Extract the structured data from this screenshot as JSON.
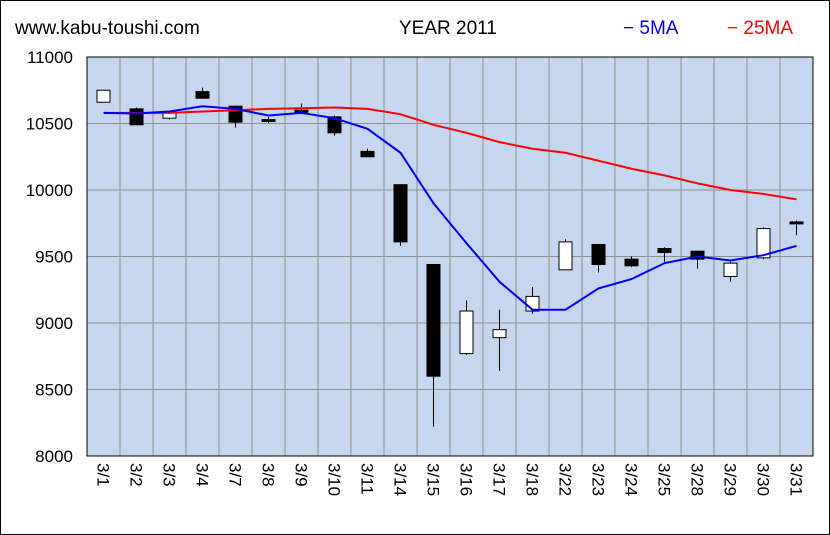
{
  "header": {
    "site": "www.kabu-toushi.com",
    "title": "YEAR 2011",
    "legend_5ma": "− 5MA",
    "legend_25ma": "− 25MA"
  },
  "colors": {
    "plot_bg": "#c6d6ee",
    "grid": "#8f8f8f",
    "ma5": "#0000ff",
    "ma25": "#ff0000",
    "candle_up": "#ffffff",
    "candle_down": "#000000"
  },
  "chart_data": {
    "type": "candlestick",
    "title": "YEAR 2011",
    "categories": [
      "3/1",
      "3/2",
      "3/3",
      "3/4",
      "3/7",
      "3/8",
      "3/9",
      "3/10",
      "3/11",
      "3/14",
      "3/15",
      "3/16",
      "3/17",
      "3/18",
      "3/22",
      "3/23",
      "3/24",
      "3/25",
      "3/28",
      "3/29",
      "3/30",
      "3/31"
    ],
    "ylim": [
      8000,
      11000
    ],
    "yticks": [
      "11000",
      "10500",
      "10000",
      "9500",
      "9000",
      "8500",
      "8000"
    ],
    "candles": [
      {
        "open": 10660,
        "close": 10750,
        "high": 10750,
        "low": 10660
      },
      {
        "open": 10610,
        "close": 10490,
        "high": 10620,
        "low": 10490
      },
      {
        "open": 10540,
        "close": 10590,
        "high": 10590,
        "low": 10530
      },
      {
        "open": 10740,
        "close": 10690,
        "high": 10770,
        "low": 10690
      },
      {
        "open": 10630,
        "close": 10510,
        "high": 10630,
        "low": 10470
      },
      {
        "open": 10530,
        "close": 10515,
        "high": 10550,
        "low": 10505
      },
      {
        "open": 10600,
        "close": 10585,
        "high": 10650,
        "low": 10570
      },
      {
        "open": 10550,
        "close": 10430,
        "high": 10560,
        "low": 10410
      },
      {
        "open": 10290,
        "close": 10250,
        "high": 10310,
        "low": 10250
      },
      {
        "open": 10040,
        "close": 9610,
        "high": 10040,
        "low": 9580
      },
      {
        "open": 9440,
        "close": 8600,
        "high": 9440,
        "low": 8220
      },
      {
        "open": 8770,
        "close": 9090,
        "high": 9170,
        "low": 8760
      },
      {
        "open": 8890,
        "close": 8950,
        "high": 9100,
        "low": 8640
      },
      {
        "open": 9090,
        "close": 9200,
        "high": 9270,
        "low": 9070
      },
      {
        "open": 9400,
        "close": 9610,
        "high": 9630,
        "low": 9400
      },
      {
        "open": 9590,
        "close": 9440,
        "high": 9590,
        "low": 9380
      },
      {
        "open": 9480,
        "close": 9430,
        "high": 9500,
        "low": 9420
      },
      {
        "open": 9560,
        "close": 9530,
        "high": 9570,
        "low": 9460
      },
      {
        "open": 9540,
        "close": 9480,
        "high": 9540,
        "low": 9410
      },
      {
        "open": 9350,
        "close": 9450,
        "high": 9460,
        "low": 9310
      },
      {
        "open": 9490,
        "close": 9710,
        "high": 9720,
        "low": 9480
      },
      {
        "open": 9760,
        "close": 9750,
        "high": 9770,
        "low": 9660
      }
    ],
    "ma5": [
      10580,
      10575,
      10590,
      10630,
      10610,
      10560,
      10580,
      10540,
      10460,
      10280,
      9900,
      9600,
      9310,
      9100,
      9100,
      9260,
      9330,
      9450,
      9500,
      9470,
      9510,
      9580
    ],
    "ma25": [
      10580,
      10580,
      10580,
      10590,
      10600,
      10610,
      10615,
      10620,
      10610,
      10570,
      10490,
      10430,
      10360,
      10310,
      10280,
      10220,
      10160,
      10110,
      10050,
      10000,
      9970,
      9930
    ]
  }
}
